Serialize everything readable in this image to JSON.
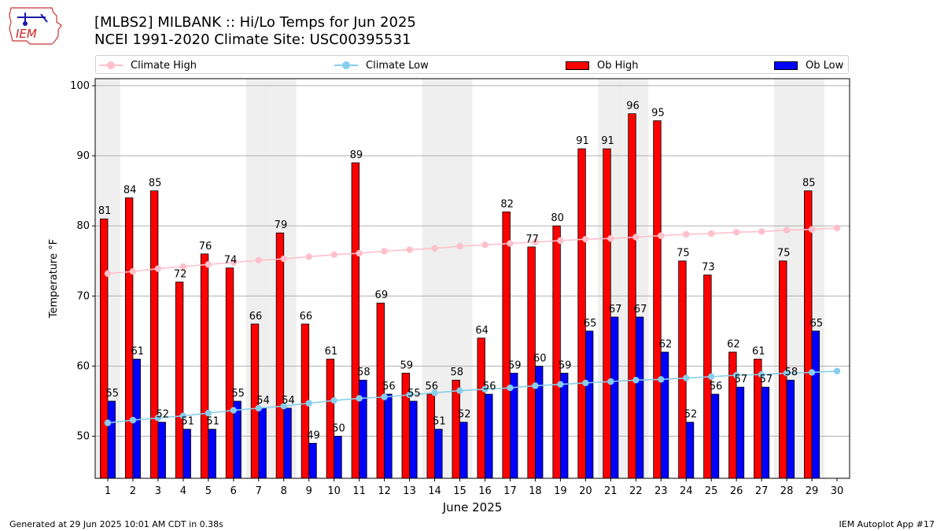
{
  "header": {
    "title_line1": "[MLBS2] MILBANK :: Hi/Lo Temps for Jun 2025",
    "title_line2": "NCEI 1991-2020 Climate Site: USC00395531"
  },
  "logo": {
    "text": "IEM"
  },
  "footer": {
    "left": "Generated at 29 Jun 2025 10:01 AM CDT in 0.38s",
    "right": "IEM Autoplot App #17"
  },
  "legend": {
    "climate_high": "Climate High",
    "climate_low": "Climate Low",
    "ob_high": "Ob High",
    "ob_low": "Ob Low"
  },
  "chart_data": {
    "type": "bar",
    "xlabel": "June 2025",
    "ylabel": "Temperature °F",
    "ylim": [
      44,
      101
    ],
    "yticks": [
      50,
      60,
      70,
      80,
      90,
      100
    ],
    "grid": "horizontal",
    "legend_position": "top",
    "days": [
      1,
      2,
      3,
      4,
      5,
      6,
      7,
      8,
      9,
      10,
      11,
      12,
      13,
      14,
      15,
      16,
      17,
      18,
      19,
      20,
      21,
      22,
      23,
      24,
      25,
      26,
      27,
      28,
      29,
      30
    ],
    "shaded_weekend_days": [
      1,
      7,
      8,
      14,
      15,
      21,
      22,
      28,
      29
    ],
    "series": [
      {
        "name": "Ob High",
        "type": "bar",
        "color": "#ff0000",
        "values": [
          81,
          84,
          85,
          72,
          76,
          74,
          66,
          79,
          66,
          61,
          89,
          69,
          59,
          56,
          58,
          64,
          82,
          77,
          80,
          91,
          91,
          96,
          95,
          75,
          73,
          62,
          61,
          75,
          85,
          null
        ]
      },
      {
        "name": "Ob Low",
        "type": "bar",
        "color": "#0000ff",
        "values": [
          55,
          61,
          52,
          51,
          51,
          55,
          54,
          54,
          49,
          50,
          58,
          56,
          55,
          51,
          52,
          56,
          59,
          60,
          59,
          65,
          67,
          67,
          62,
          52,
          56,
          57,
          57,
          58,
          65,
          null
        ]
      },
      {
        "name": "Climate High",
        "type": "line",
        "color": "#ffc0cb",
        "values": [
          73.2,
          73.5,
          73.9,
          74.2,
          74.5,
          74.8,
          75.1,
          75.3,
          75.6,
          75.9,
          76.1,
          76.4,
          76.6,
          76.8,
          77.1,
          77.3,
          77.5,
          77.7,
          77.9,
          78.1,
          78.2,
          78.4,
          78.6,
          78.8,
          78.9,
          79.1,
          79.2,
          79.4,
          79.5,
          79.7
        ]
      },
      {
        "name": "Climate Low",
        "type": "line",
        "color": "#87ceeb",
        "values": [
          51.9,
          52.3,
          52.6,
          52.9,
          53.3,
          53.7,
          54.0,
          54.3,
          54.7,
          55.1,
          55.4,
          55.6,
          55.9,
          56.2,
          56.5,
          56.7,
          56.9,
          57.2,
          57.4,
          57.6,
          57.8,
          58.0,
          58.1,
          58.3,
          58.5,
          58.7,
          58.8,
          59.0,
          59.1,
          59.3
        ]
      }
    ]
  }
}
